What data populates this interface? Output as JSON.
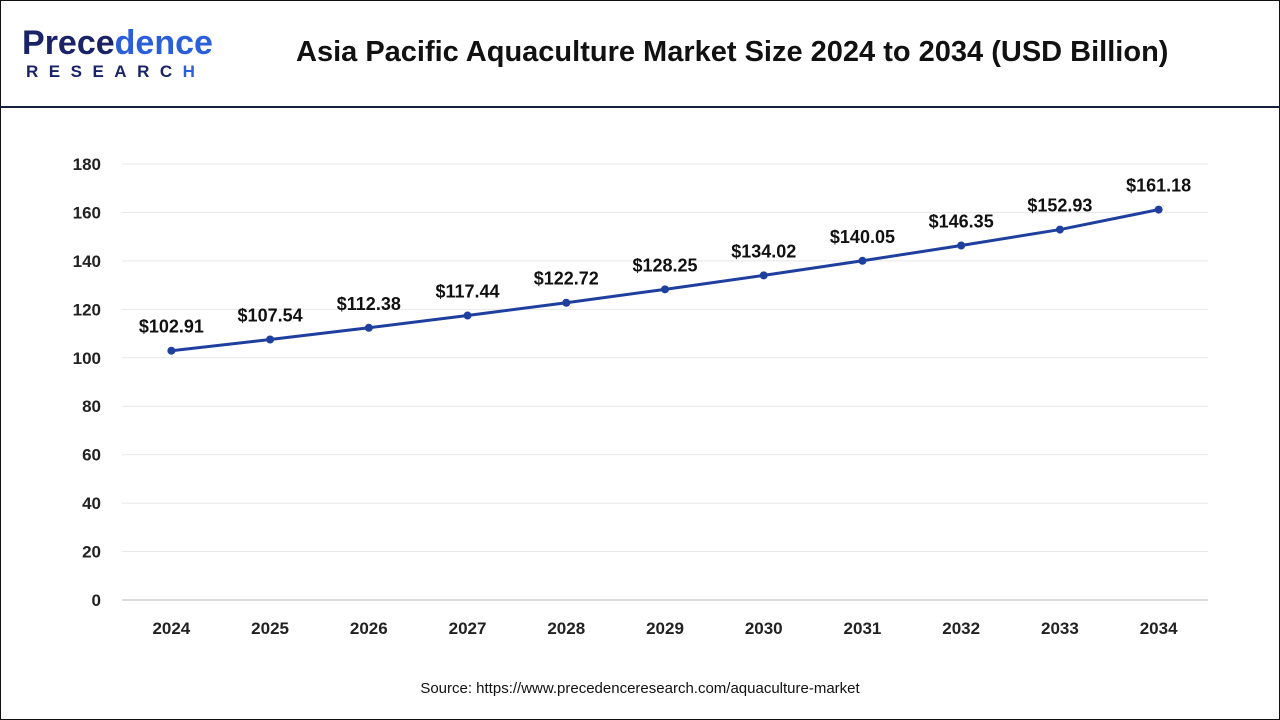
{
  "header": {
    "logo_text": "Precedence",
    "logo_sub": "RESEARCH",
    "title": "Asia Pacific Aquaculture Market Size 2024 to 2034 (USD Billion)"
  },
  "source": "Source: https://www.precedenceresearch.com/aquaculture-market",
  "chart_data": {
    "type": "line",
    "title": "Asia Pacific Aquaculture Market Size 2024 to 2034 (USD Billion)",
    "categories": [
      "2024",
      "2025",
      "2026",
      "2027",
      "2028",
      "2029",
      "2030",
      "2031",
      "2032",
      "2033",
      "2034"
    ],
    "values": [
      102.91,
      107.54,
      112.38,
      117.44,
      122.72,
      128.25,
      134.02,
      140.05,
      146.35,
      152.93,
      161.18
    ],
    "labels": [
      "$102.91",
      "$107.54",
      "$112.38",
      "$117.44",
      "$122.72",
      "$128.25",
      "$134.02",
      "$140.05",
      "$146.35",
      "$152.93",
      "$161.18"
    ],
    "ylim": [
      0,
      180
    ],
    "yticks": [
      0,
      20,
      40,
      60,
      80,
      100,
      120,
      140,
      160,
      180
    ],
    "grid": true,
    "line_color": "#1f3f9e"
  }
}
